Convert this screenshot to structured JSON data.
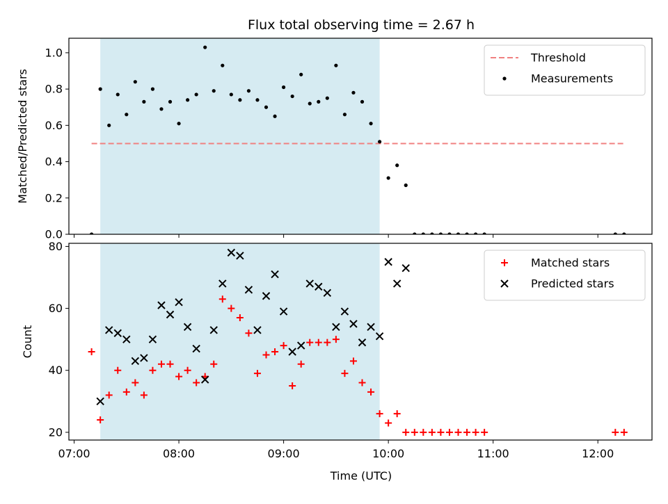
{
  "chart_data": [
    {
      "type": "scatter",
      "title": "Flux total observing time = 2.67 h",
      "xlabel": "",
      "ylabel": "Matched/Predicted stars",
      "xlim": [
        "06:57",
        "12:31"
      ],
      "ylim": [
        0,
        1.08
      ],
      "yticks": [
        "0.0",
        "0.2",
        "0.4",
        "0.6",
        "0.8",
        "1.0"
      ],
      "xtick_labels_shown": false,
      "grid": false,
      "legend_position": "top-right",
      "shaded_interval": {
        "from": "07:15",
        "to": "09:55",
        "color": "#add8e6"
      },
      "series": [
        {
          "name": "Threshold",
          "kind": "line",
          "style": "dashed",
          "color": "#f08080",
          "x": [
            "07:10",
            "12:15"
          ],
          "y": [
            0.5,
            0.5
          ]
        },
        {
          "name": "Measurements",
          "kind": "scatter",
          "marker": "dot",
          "color": "#000000",
          "points": [
            [
              "07:10",
              0.0
            ],
            [
              "07:15",
              0.8
            ],
            [
              "07:20",
              0.6
            ],
            [
              "07:25",
              0.77
            ],
            [
              "07:30",
              0.66
            ],
            [
              "07:35",
              0.84
            ],
            [
              "07:40",
              0.73
            ],
            [
              "07:45",
              0.8
            ],
            [
              "07:50",
              0.69
            ],
            [
              "07:55",
              0.73
            ],
            [
              "08:00",
              0.61
            ],
            [
              "08:05",
              0.74
            ],
            [
              "08:10",
              0.77
            ],
            [
              "08:15",
              1.03
            ],
            [
              "08:20",
              0.79
            ],
            [
              "08:25",
              0.93
            ],
            [
              "08:30",
              0.77
            ],
            [
              "08:35",
              0.74
            ],
            [
              "08:40",
              0.79
            ],
            [
              "08:45",
              0.74
            ],
            [
              "08:50",
              0.7
            ],
            [
              "08:55",
              0.65
            ],
            [
              "09:00",
              0.81
            ],
            [
              "09:05",
              0.76
            ],
            [
              "09:10",
              0.88
            ],
            [
              "09:15",
              0.72
            ],
            [
              "09:20",
              0.73
            ],
            [
              "09:25",
              0.75
            ],
            [
              "09:30",
              0.93
            ],
            [
              "09:35",
              0.66
            ],
            [
              "09:40",
              0.78
            ],
            [
              "09:45",
              0.73
            ],
            [
              "09:50",
              0.61
            ],
            [
              "09:55",
              0.51
            ],
            [
              "10:00",
              0.31
            ],
            [
              "10:05",
              0.38
            ],
            [
              "10:10",
              0.27
            ],
            [
              "10:15",
              0.0
            ],
            [
              "10:20",
              0.0
            ],
            [
              "10:25",
              0.0
            ],
            [
              "10:30",
              0.0
            ],
            [
              "10:35",
              0.0
            ],
            [
              "10:40",
              0.0
            ],
            [
              "10:45",
              0.0
            ],
            [
              "10:50",
              0.0
            ],
            [
              "10:55",
              0.0
            ],
            [
              "12:10",
              0.0
            ],
            [
              "12:15",
              0.0
            ]
          ]
        }
      ]
    },
    {
      "type": "scatter",
      "title": "",
      "xlabel": "Time (UTC)",
      "ylabel": "Count",
      "xlim": [
        "06:57",
        "12:31"
      ],
      "ylim": [
        17.5,
        81
      ],
      "yticks": [
        "20",
        "40",
        "60",
        "80"
      ],
      "xticks": [
        "07:00",
        "08:00",
        "09:00",
        "10:00",
        "11:00",
        "12:00"
      ],
      "grid": false,
      "legend_position": "top-right",
      "shaded_interval": {
        "from": "07:15",
        "to": "09:55",
        "color": "#add8e6"
      },
      "series": [
        {
          "name": "Matched stars",
          "kind": "scatter",
          "marker": "plus",
          "color": "#ff0000",
          "points": [
            [
              "07:10",
              46
            ],
            [
              "07:15",
              24
            ],
            [
              "07:20",
              32
            ],
            [
              "07:25",
              40
            ],
            [
              "07:30",
              33
            ],
            [
              "07:35",
              36
            ],
            [
              "07:40",
              32
            ],
            [
              "07:45",
              40
            ],
            [
              "07:50",
              42
            ],
            [
              "07:55",
              42
            ],
            [
              "08:00",
              38
            ],
            [
              "08:05",
              40
            ],
            [
              "08:10",
              36
            ],
            [
              "08:15",
              38
            ],
            [
              "08:20",
              42
            ],
            [
              "08:25",
              63
            ],
            [
              "08:30",
              60
            ],
            [
              "08:35",
              57
            ],
            [
              "08:40",
              52
            ],
            [
              "08:45",
              39
            ],
            [
              "08:50",
              45
            ],
            [
              "08:55",
              46
            ],
            [
              "09:00",
              48
            ],
            [
              "09:05",
              35
            ],
            [
              "09:10",
              42
            ],
            [
              "09:15",
              49
            ],
            [
              "09:20",
              49
            ],
            [
              "09:25",
              49
            ],
            [
              "09:30",
              50
            ],
            [
              "09:35",
              39
            ],
            [
              "09:40",
              43
            ],
            [
              "09:45",
              36
            ],
            [
              "09:50",
              33
            ],
            [
              "09:55",
              26
            ],
            [
              "10:00",
              23
            ],
            [
              "10:05",
              26
            ],
            [
              "10:10",
              20
            ],
            [
              "10:15",
              20
            ],
            [
              "10:20",
              20
            ],
            [
              "10:25",
              20
            ],
            [
              "10:30",
              20
            ],
            [
              "10:35",
              20
            ],
            [
              "10:40",
              20
            ],
            [
              "10:45",
              20
            ],
            [
              "10:50",
              20
            ],
            [
              "10:55",
              20
            ],
            [
              "12:10",
              20
            ],
            [
              "12:15",
              20
            ]
          ]
        },
        {
          "name": "Predicted stars",
          "kind": "scatter",
          "marker": "x",
          "color": "#000000",
          "points": [
            [
              "07:15",
              30
            ],
            [
              "07:20",
              53
            ],
            [
              "07:25",
              52
            ],
            [
              "07:30",
              50
            ],
            [
              "07:35",
              43
            ],
            [
              "07:40",
              44
            ],
            [
              "07:45",
              50
            ],
            [
              "07:50",
              61
            ],
            [
              "07:55",
              58
            ],
            [
              "08:00",
              62
            ],
            [
              "08:05",
              54
            ],
            [
              "08:10",
              47
            ],
            [
              "08:15",
              37
            ],
            [
              "08:20",
              53
            ],
            [
              "08:25",
              68
            ],
            [
              "08:30",
              78
            ],
            [
              "08:35",
              77
            ],
            [
              "08:40",
              66
            ],
            [
              "08:45",
              53
            ],
            [
              "08:50",
              64
            ],
            [
              "08:55",
              71
            ],
            [
              "09:00",
              59
            ],
            [
              "09:05",
              46
            ],
            [
              "09:10",
              48
            ],
            [
              "09:15",
              68
            ],
            [
              "09:20",
              67
            ],
            [
              "09:25",
              65
            ],
            [
              "09:30",
              54
            ],
            [
              "09:35",
              59
            ],
            [
              "09:40",
              55
            ],
            [
              "09:45",
              49
            ],
            [
              "09:50",
              54
            ],
            [
              "09:55",
              51
            ],
            [
              "10:00",
              75
            ],
            [
              "10:05",
              68
            ],
            [
              "10:10",
              73
            ]
          ]
        }
      ]
    }
  ]
}
